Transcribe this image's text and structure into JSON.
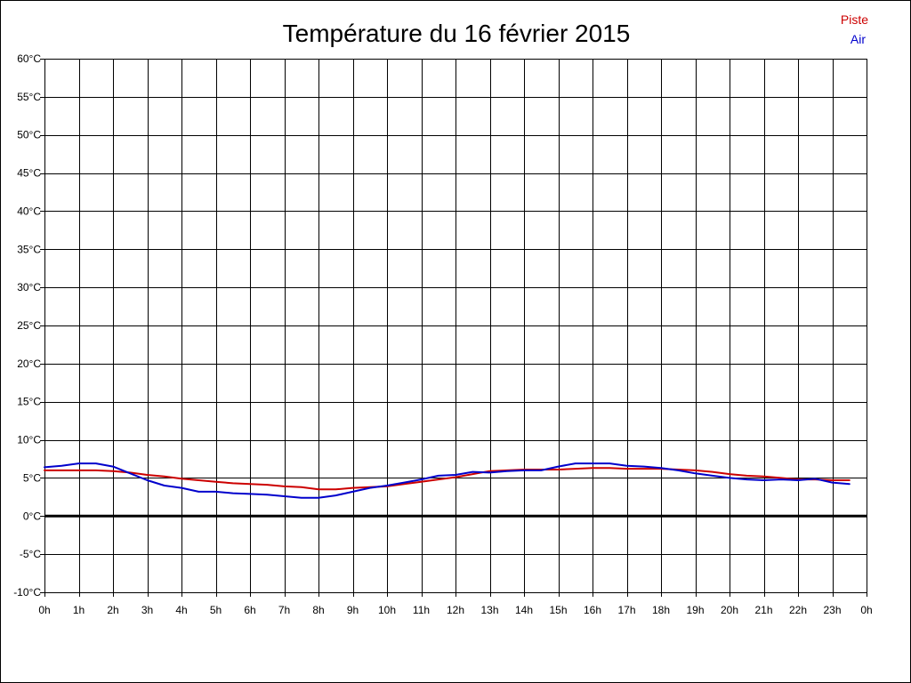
{
  "chart_data": {
    "type": "line",
    "title": "Température du 16 février 2015",
    "xlabel": "",
    "ylabel": "",
    "grid": true,
    "legend_position": "top-right",
    "xlim": [
      0,
      24
    ],
    "ylim": [
      -10,
      60
    ],
    "x_ticks": [
      "0h",
      "1h",
      "2h",
      "3h",
      "4h",
      "5h",
      "6h",
      "7h",
      "8h",
      "9h",
      "10h",
      "11h",
      "12h",
      "13h",
      "14h",
      "15h",
      "16h",
      "17h",
      "18h",
      "19h",
      "20h",
      "21h",
      "22h",
      "23h",
      "0h"
    ],
    "y_ticks": [
      "-10°C",
      "-5°C",
      "0°C",
      "5°C",
      "10°C",
      "15°C",
      "20°C",
      "25°C",
      "30°C",
      "35°C",
      "40°C",
      "45°C",
      "50°C",
      "55°C",
      "60°C"
    ],
    "y_tick_values": [
      -10,
      -5,
      0,
      5,
      10,
      15,
      20,
      25,
      30,
      35,
      40,
      45,
      50,
      55,
      60
    ],
    "zero_line": true,
    "series": [
      {
        "name": "Piste",
        "color": "#cc0000",
        "x": [
          0,
          0.5,
          1,
          1.5,
          2,
          2.5,
          3,
          3.5,
          4,
          4.5,
          5,
          5.5,
          6,
          6.5,
          7,
          7.5,
          8,
          8.5,
          9,
          9.5,
          10,
          10.5,
          11,
          11.5,
          12,
          12.5,
          13,
          13.5,
          14,
          14.5,
          15,
          15.5,
          16,
          16.5,
          17,
          17.5,
          18,
          18.5,
          19,
          19.5,
          20,
          20.5,
          21,
          21.5,
          22,
          22.5,
          23,
          23.5
        ],
        "values": [
          6.0,
          6.0,
          6.0,
          6.0,
          5.9,
          5.7,
          5.4,
          5.2,
          4.9,
          4.7,
          4.5,
          4.3,
          4.2,
          4.1,
          3.9,
          3.8,
          3.5,
          3.5,
          3.7,
          3.8,
          3.9,
          4.2,
          4.5,
          4.8,
          5.1,
          5.5,
          5.9,
          6.0,
          6.1,
          6.1,
          6.1,
          6.2,
          6.3,
          6.3,
          6.2,
          6.2,
          6.2,
          6.1,
          6.0,
          5.8,
          5.5,
          5.3,
          5.2,
          5.0,
          4.8,
          4.8,
          4.7,
          4.7
        ]
      },
      {
        "name": "Air",
        "color": "#0000cc",
        "x": [
          0,
          0.5,
          1,
          1.5,
          2,
          2.5,
          3,
          3.5,
          4,
          4.5,
          5,
          5.5,
          6,
          6.5,
          7,
          7.5,
          8,
          8.5,
          9,
          9.5,
          10,
          10.5,
          11,
          11.5,
          12,
          12.5,
          13,
          13.5,
          14,
          14.5,
          15,
          15.5,
          16,
          16.5,
          17,
          17.5,
          18,
          18.5,
          19,
          19.5,
          20,
          20.5,
          21,
          21.5,
          22,
          22.5,
          23,
          23.5
        ],
        "values": [
          6.4,
          6.6,
          6.9,
          6.9,
          6.5,
          5.6,
          4.7,
          4.0,
          3.7,
          3.2,
          3.2,
          3.0,
          2.9,
          2.8,
          2.6,
          2.4,
          2.4,
          2.7,
          3.2,
          3.7,
          4.0,
          4.4,
          4.8,
          5.3,
          5.4,
          5.8,
          5.7,
          5.9,
          6.0,
          6.0,
          6.5,
          6.9,
          6.9,
          6.9,
          6.6,
          6.5,
          6.3,
          6.0,
          5.6,
          5.3,
          5.0,
          4.8,
          4.7,
          4.8,
          4.7,
          4.9,
          4.4,
          4.2
        ]
      }
    ]
  }
}
